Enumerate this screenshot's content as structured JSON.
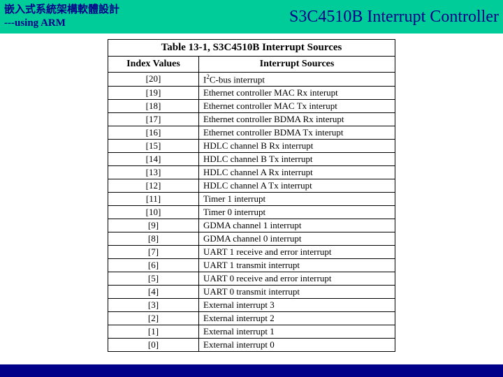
{
  "header": {
    "left_line1": "嵌入式系統架構軟體設計",
    "left_line2": "---using ARM",
    "right": "S3C4510B Interrupt Controller"
  },
  "table": {
    "title": "Table 13-1, S3C4510B Interrupt Sources",
    "col_index_header": "Index Values",
    "col_source_header": "Interrupt Sources",
    "rows": [
      {
        "index": "[20]",
        "source": "I²C-bus interrupt",
        "has_sup": true,
        "source_pre": "I",
        "source_sup": "2",
        "source_post": "C-bus interrupt"
      },
      {
        "index": "[19]",
        "source": "Ethernet controller MAC Rx interupt"
      },
      {
        "index": "[18]",
        "source": "Ethernet controller MAC Tx interupt"
      },
      {
        "index": "[17]",
        "source": "Ethernet controller BDMA Rx interupt"
      },
      {
        "index": "[16]",
        "source": "Ethernet controller BDMA Tx interupt"
      },
      {
        "index": "[15]",
        "source": "HDLC channel B Rx interrupt"
      },
      {
        "index": "[14]",
        "source": "HDLC channel B Tx interrupt"
      },
      {
        "index": "[13]",
        "source": "HDLC channel A Rx interrupt"
      },
      {
        "index": "[12]",
        "source": "HDLC channel A Tx interrupt"
      },
      {
        "index": "[11]",
        "source": "Timer 1 interrupt"
      },
      {
        "index": "[10]",
        "source": "Timer 0 interrupt"
      },
      {
        "index": "[9]",
        "source": "GDMA channel 1 interrupt"
      },
      {
        "index": "[8]",
        "source": "GDMA channel 0 interrupt"
      },
      {
        "index": "[7]",
        "source": "UART 1 receive and error interrupt"
      },
      {
        "index": "[6]",
        "source": "UART 1 transmit interrupt"
      },
      {
        "index": "[5]",
        "source": "UART 0 receive and error interrupt"
      },
      {
        "index": "[4]",
        "source": "UART 0 transmit interrupt"
      },
      {
        "index": "[3]",
        "source": "External interrupt 3"
      },
      {
        "index": "[2]",
        "source": "External interrupt 2"
      },
      {
        "index": "[1]",
        "source": "External interrupt 1"
      },
      {
        "index": "[0]",
        "source": "External interrupt 0"
      }
    ]
  }
}
